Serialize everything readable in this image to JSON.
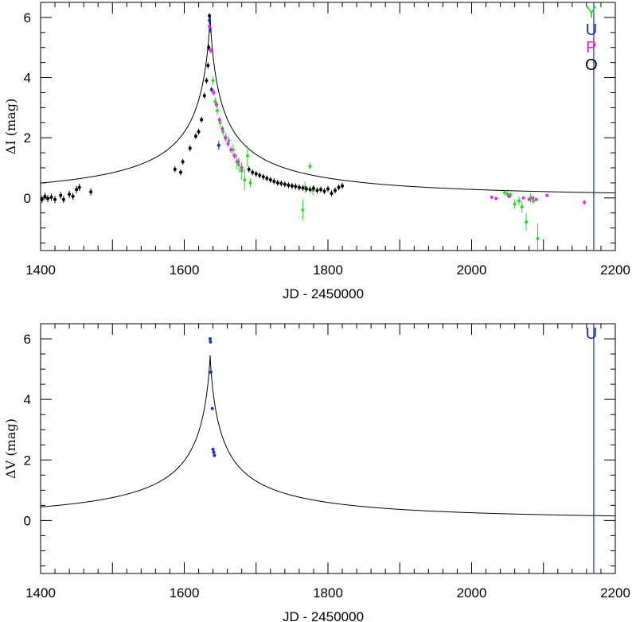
{
  "chart_data": [
    {
      "type": "scatter",
      "xlabel": "JD - 2450000",
      "ylabel": "ΔI (mag)",
      "xlim": [
        1400,
        2200
      ],
      "ylim": [
        -1.75,
        6.5
      ],
      "xticks": [
        1400,
        1600,
        1800,
        2000,
        2200
      ],
      "yticks": [
        0,
        2,
        4,
        6
      ],
      "legend_placement": "top-right",
      "marker_line_x": 2170,
      "marker_line_color": "#1030d0",
      "model": {
        "t0": 1636,
        "base": 0.02,
        "amp": 6.05,
        "tau": 18,
        "ktail": 0.93,
        "color": "#000000"
      },
      "series": [
        {
          "label": "Y",
          "color": "#22dd22",
          "points": [
            [
              1640,
              3.9,
              0.15
            ],
            [
              1643,
              3.2,
              0.15
            ],
            [
              1646,
              2.9,
              0.15
            ],
            [
              1650,
              2.5,
              0.15
            ],
            [
              1654,
              2.2,
              0.15
            ],
            [
              1658,
              2.0,
              0.15
            ],
            [
              1662,
              1.9,
              0.15
            ],
            [
              1668,
              1.6,
              0.2
            ],
            [
              1673,
              1.2,
              0.25
            ],
            [
              1676,
              1.1,
              0.25
            ],
            [
              1680,
              0.9,
              0.3
            ],
            [
              1684,
              0.6,
              0.35
            ],
            [
              1688,
              1.4,
              0.35
            ],
            [
              1692,
              0.5,
              0.15
            ],
            [
              1765,
              -0.4,
              0.35
            ],
            [
              1768,
              0.35,
              0.2
            ],
            [
              1775,
              1.05,
              0.12
            ],
            [
              1779,
              0.25,
              0.15
            ],
            [
              2046,
              0.18,
              0.1
            ],
            [
              2050,
              0.12,
              0.1
            ],
            [
              2054,
              0.1,
              0.1
            ],
            [
              2060,
              -0.2,
              0.15
            ],
            [
              2066,
              -0.1,
              0.15
            ],
            [
              2070,
              -0.3,
              0.2
            ],
            [
              2076,
              -0.8,
              0.3
            ],
            [
              2082,
              0.0,
              0.15
            ],
            [
              2086,
              -0.1,
              0.1
            ],
            [
              2092,
              -1.35,
              0.5
            ]
          ]
        },
        {
          "label": "U",
          "color": "#1030d0",
          "points": [
            [
              1635,
              5.9,
              0.1
            ],
            [
              1636,
              5.6,
              0.1
            ],
            [
              1638,
              3.6,
              0.1
            ],
            [
              1648,
              1.75,
              0.15
            ]
          ]
        },
        {
          "label": "P",
          "color": "#ee22ee",
          "points": [
            [
              1635,
              5.7,
              0.1
            ],
            [
              1637,
              4.9,
              0.1
            ],
            [
              1641,
              3.5,
              0.1
            ],
            [
              1645,
              3.1,
              0.1
            ],
            [
              1649,
              2.6,
              0.1
            ],
            [
              1653,
              2.3,
              0.1
            ],
            [
              1657,
              2.0,
              0.1
            ],
            [
              1661,
              1.8,
              0.1
            ],
            [
              1665,
              1.6,
              0.1
            ],
            [
              1670,
              1.4,
              0.1
            ],
            [
              1675,
              1.2,
              0.1
            ],
            [
              1680,
              1.0,
              0.1
            ],
            [
              2028,
              0.02,
              0.05
            ],
            [
              2034,
              -0.02,
              0.05
            ],
            [
              2052,
              0.05,
              0.05
            ],
            [
              2072,
              0.0,
              0.05
            ],
            [
              2080,
              -0.05,
              0.05
            ],
            [
              2085,
              0.0,
              0.05
            ],
            [
              2090,
              -0.05,
              0.05
            ],
            [
              2105,
              0.08,
              0.05
            ],
            [
              2157,
              -0.15,
              0.08
            ]
          ]
        },
        {
          "label": "O",
          "color": "#000000",
          "points": [
            [
              1402,
              -0.05,
              0.12
            ],
            [
              1406,
              0.05,
              0.12
            ],
            [
              1410,
              -0.02,
              0.12
            ],
            [
              1415,
              0.02,
              0.12
            ],
            [
              1420,
              -0.05,
              0.12
            ],
            [
              1428,
              0.08,
              0.12
            ],
            [
              1432,
              -0.05,
              0.12
            ],
            [
              1440,
              0.12,
              0.12
            ],
            [
              1445,
              0.05,
              0.12
            ],
            [
              1450,
              0.28,
              0.12
            ],
            [
              1454,
              0.35,
              0.12
            ],
            [
              1470,
              0.2,
              0.12
            ],
            [
              1587,
              0.95,
              0.1
            ],
            [
              1595,
              0.85,
              0.1
            ],
            [
              1598,
              1.2,
              0.1
            ],
            [
              1608,
              1.65,
              0.1
            ],
            [
              1616,
              2.05,
              0.1
            ],
            [
              1620,
              2.2,
              0.1
            ],
            [
              1624,
              2.6,
              0.1
            ],
            [
              1628,
              3.4,
              0.1
            ],
            [
              1631,
              3.9,
              0.1
            ],
            [
              1633,
              4.4,
              0.1
            ],
            [
              1634,
              5.0,
              0.1
            ],
            [
              1635,
              6.05,
              0.1
            ],
            [
              1690,
              0.95,
              0.1
            ],
            [
              1695,
              0.85,
              0.1
            ],
            [
              1700,
              0.8,
              0.1
            ],
            [
              1705,
              0.75,
              0.1
            ],
            [
              1710,
              0.7,
              0.1
            ],
            [
              1715,
              0.65,
              0.1
            ],
            [
              1720,
              0.6,
              0.1
            ],
            [
              1725,
              0.55,
              0.1
            ],
            [
              1730,
              0.5,
              0.1
            ],
            [
              1735,
              0.48,
              0.1
            ],
            [
              1740,
              0.45,
              0.1
            ],
            [
              1745,
              0.42,
              0.1
            ],
            [
              1750,
              0.4,
              0.1
            ],
            [
              1755,
              0.38,
              0.1
            ],
            [
              1760,
              0.35,
              0.1
            ],
            [
              1765,
              0.33,
              0.1
            ],
            [
              1770,
              0.3,
              0.1
            ],
            [
              1775,
              0.28,
              0.1
            ],
            [
              1780,
              0.32,
              0.1
            ],
            [
              1785,
              0.25,
              0.1
            ],
            [
              1790,
              0.28,
              0.1
            ],
            [
              1795,
              0.22,
              0.1
            ],
            [
              1800,
              0.3,
              0.1
            ],
            [
              1805,
              0.15,
              0.1
            ],
            [
              1810,
              0.25,
              0.1
            ],
            [
              1815,
              0.35,
              0.1
            ],
            [
              1820,
              0.4,
              0.1
            ]
          ]
        }
      ]
    },
    {
      "type": "scatter",
      "xlabel": "JD - 2450000",
      "ylabel": "ΔV (mag)",
      "xlim": [
        1400,
        2200
      ],
      "ylim": [
        -1.75,
        6.5
      ],
      "xticks": [
        1400,
        1600,
        1800,
        2000,
        2200
      ],
      "yticks": [
        0,
        2,
        4,
        6
      ],
      "legend_placement": "top-right",
      "marker_line_x": 2170,
      "marker_line_color": "#1030d0",
      "model": {
        "t0": 1636,
        "base": 0.02,
        "amp": 5.45,
        "tau": 18,
        "ktail": 0.93,
        "color": "#000000"
      },
      "series": [
        {
          "label": "U",
          "color": "#1030d0",
          "points": [
            [
              1636,
              6.0,
              0.05
            ],
            [
              1636.5,
              5.9,
              0.05
            ],
            [
              1637,
              4.9,
              0.05
            ],
            [
              1639,
              3.7,
              0.05
            ],
            [
              1640,
              2.35,
              0.05
            ],
            [
              1641,
              2.25,
              0.05
            ],
            [
              1642,
              2.15,
              0.05
            ]
          ]
        }
      ]
    }
  ]
}
